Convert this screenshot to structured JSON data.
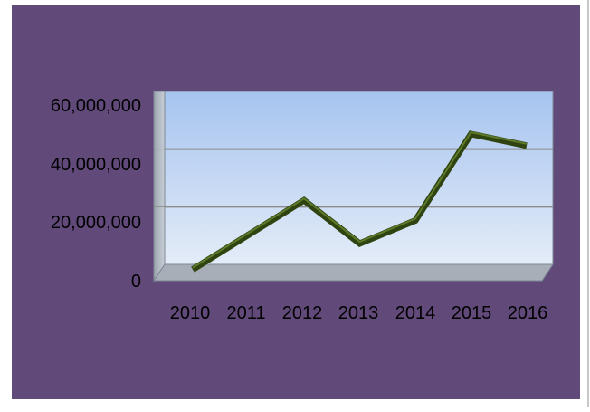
{
  "chart_data": {
    "type": "line",
    "style": "3d",
    "title": "",
    "xlabel": "",
    "ylabel": "",
    "categories": [
      "2010",
      "2011",
      "2012",
      "2013",
      "2014",
      "2015",
      "2016"
    ],
    "series": [
      {
        "values": [
          2000000,
          14000000,
          26000000,
          11000000,
          19000000,
          49000000,
          45000000
        ]
      }
    ],
    "y_ticks": [
      0,
      20000000,
      40000000,
      60000000
    ],
    "y_tick_labels": [
      "0",
      "20,000,000",
      "40,000,000",
      "60,000,000"
    ],
    "ylim": [
      0,
      60000000
    ],
    "grid": true,
    "legend": "none",
    "colors": {
      "background": "#614a7a",
      "line": "#2f4410",
      "line_highlight": "#5e7a2a",
      "wall_top": "#a6c4ef",
      "wall_bottom": "#e4ecf8",
      "side_wall": "#b4bcc6",
      "floor": "#a7aeb7",
      "gridline": "#8c8c8c"
    }
  }
}
